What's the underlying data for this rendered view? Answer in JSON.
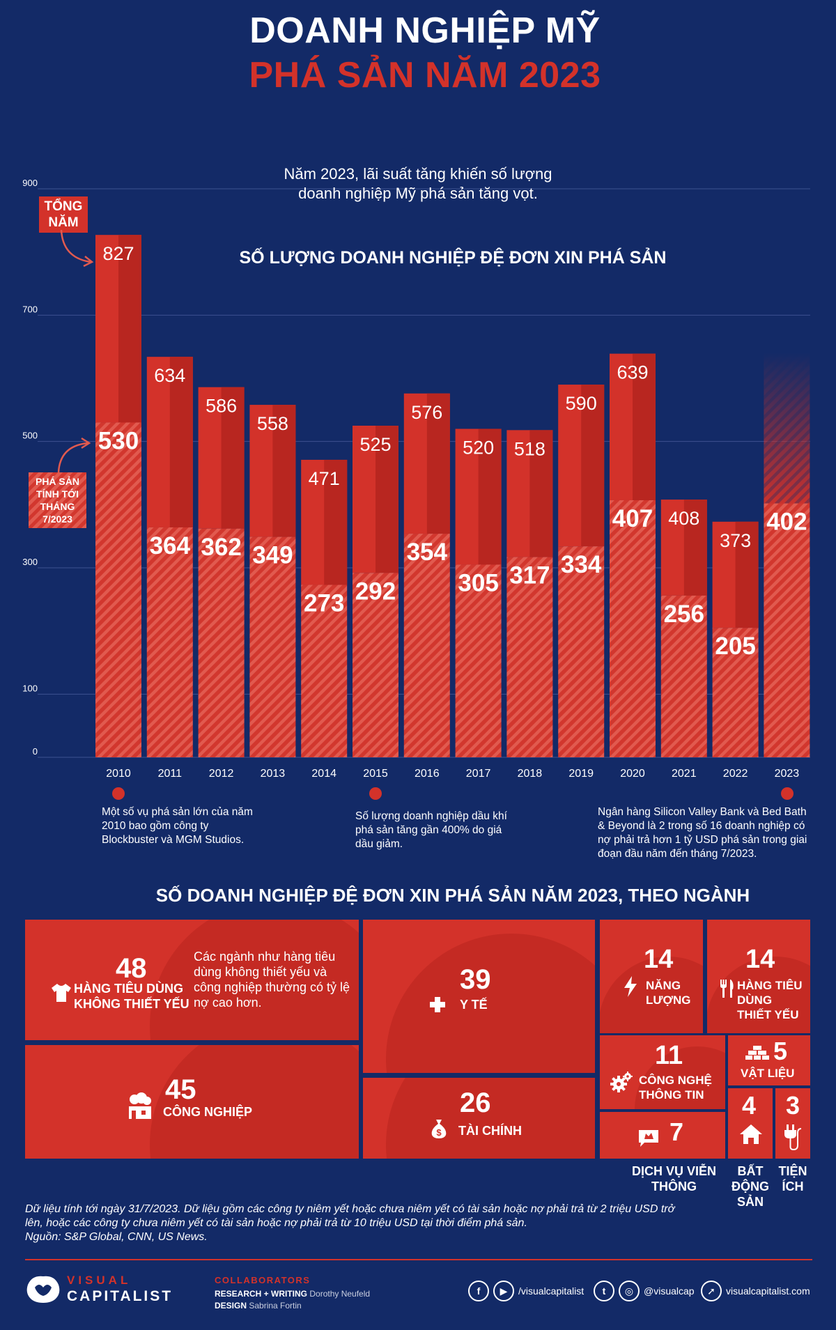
{
  "header": {
    "title_line1": "DOANH NGHIỆP MỸ",
    "title_line2": "PHÁ SẢN NĂM 2023"
  },
  "intro_text": "Năm 2023, lãi suất tăng khiến số lượng doanh nghiệp Mỹ phá sản tăng vọt.",
  "colors": {
    "background": "#132a67",
    "accent": "#d3322a",
    "dark_red": "#b82620",
    "stripe_light": "#e15a4f"
  },
  "chart_data": {
    "type": "bar",
    "title": "SỐ LƯỢNG DOANH NGHIỆP ĐỆ ĐƠN XIN PHÁ SẢN",
    "categories": [
      "2010",
      "2011",
      "2012",
      "2013",
      "2014",
      "2015",
      "2016",
      "2017",
      "2018",
      "2019",
      "2020",
      "2021",
      "2022",
      "2023"
    ],
    "series": [
      {
        "name": "TỔNG NĂM",
        "values": [
          827,
          634,
          586,
          558,
          471,
          525,
          576,
          520,
          518,
          590,
          639,
          408,
          373,
          null
        ]
      },
      {
        "name": "PHÁ SẢN TÍNH TỚI THÁNG 7/2023",
        "values": [
          530,
          364,
          362,
          349,
          273,
          292,
          354,
          305,
          317,
          334,
          407,
          256,
          205,
          402
        ]
      }
    ],
    "y_ticks": [
      0,
      100,
      300,
      500,
      700,
      900
    ],
    "ylim": [
      0,
      900
    ],
    "legend": {
      "total_label": "TỔNG NĂM",
      "ytd_label": "PHÁ SẢN TÍNH TỚI THÁNG 7/2023"
    }
  },
  "notes": [
    {
      "year": "2010",
      "text": "Một số vụ phá sản lớn của năm 2010 bao gồm công ty Blockbuster và MGM Studios."
    },
    {
      "year": "2015",
      "text": "Số lượng doanh nghiệp dầu khí phá sản tăng gần 400% do giá dầu giảm."
    },
    {
      "year": "2023",
      "text": "Ngân hàng Silicon Valley Bank và Bed Bath & Beyond là 2 trong số 16 doanh nghiệp có nợ phải trả hơn 1 tỷ USD phá sản trong giai đoạn đầu năm đến tháng 7/2023."
    }
  ],
  "sectors": {
    "title": "SỐ DOANH NGHIỆP ĐỆ ĐƠN XIN PHÁ SẢN NĂM 2023, THEO NGÀNH",
    "consumer_discretionary": {
      "value": "48",
      "label_1": "HÀNG TIÊU DÙNG",
      "label_2": "KHÔNG THIẾT YẾU",
      "note": "Các ngành như hàng tiêu dùng không thiết yếu và công nghiệp thường có tỷ lệ nợ cao hơn.",
      "icon": "tshirt-icon"
    },
    "industrials": {
      "value": "45",
      "label": "CÔNG NGHIỆP",
      "icon": "factory-icon"
    },
    "healthcare": {
      "value": "39",
      "label": "Y TẾ",
      "icon": "medical-cross-icon"
    },
    "financials": {
      "value": "26",
      "label": "TÀI CHÍNH",
      "icon": "money-bag-icon"
    },
    "energy": {
      "value": "14",
      "label_1": "NĂNG",
      "label_2": "LƯỢNG",
      "icon": "lightning-icon"
    },
    "consumer_staples": {
      "value": "14",
      "label_1": "HÀNG TIÊU",
      "label_2": "DÙNG",
      "label_3": "THIẾT YẾU",
      "icon": "fork-knife-icon"
    },
    "info_tech": {
      "value": "11",
      "label_1": "CÔNG NGHỆ",
      "label_2": "THÔNG TIN",
      "icon": "gear-icon"
    },
    "materials": {
      "value": "5",
      "label": "VẬT LIỆU",
      "icon": "bricks-icon"
    },
    "telecom": {
      "value": "7",
      "label_1": "DỊCH VỤ VIỄN",
      "label_2": "THÔNG",
      "icon": "chat-icon"
    },
    "real_estate": {
      "value": "4",
      "label_1": "BẤT",
      "label_2": "ĐỘNG",
      "label_3": "SẢN",
      "icon": "house-icon"
    },
    "utilities": {
      "value": "3",
      "label_1": "TIỆN",
      "label_2": "ÍCH",
      "icon": "plug-icon"
    }
  },
  "footnote": {
    "line1": "Dữ liệu tính tới ngày 31/7/2023. Dữ liệu gồm các công ty niêm yết hoặc chưa niêm yết có tài sản hoặc nợ phải trả từ 2 triệu USD trở",
    "line2": "lên, hoặc các công ty chưa niêm yết có tài sản hoặc nợ phải trả từ 10 triệu USD tại thời điểm phá sản.",
    "line3": "Nguồn: S&P Global, CNN, US News."
  },
  "brand": {
    "logo_top": "VISUAL",
    "logo_bottom": "CAPITALIST",
    "collaborators_title": "COLLABORATORS",
    "research_label": "RESEARCH + WRITING",
    "research_name": "Dorothy Neufeld",
    "design_label": "DESIGN",
    "design_name": "Sabrina Fortin",
    "social_fb_yt": "/visualcapitalist",
    "social_tw_ig": "@visualcap",
    "website": "visualcapitalist.com"
  }
}
